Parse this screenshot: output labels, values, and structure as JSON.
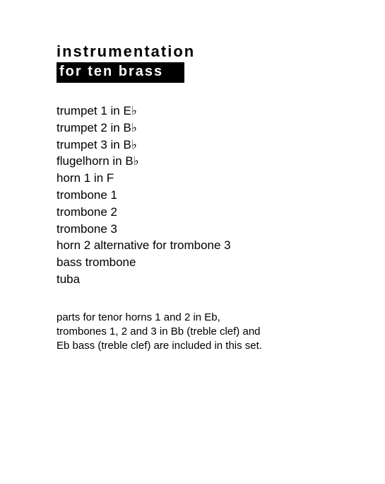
{
  "heading": "instrumentation",
  "subheading": "for ten brass",
  "instruments": [
    "trumpet 1 in E♭",
    "trumpet 2 in B♭",
    "trumpet 3 in B♭",
    "flugelhorn in B♭",
    "horn 1 in F",
    "trombone 1",
    "trombone 2",
    "trombone 3",
    "horn 2 alternative for trombone 3",
    "bass trombone",
    "tuba"
  ],
  "note_lines": [
    "parts for tenor horns 1 and 2 in Eb,",
    "trombones 1, 2 and 3 in Bb (treble clef) and",
    "Eb bass (treble clef) are included in this set."
  ],
  "colors": {
    "background": "#ffffff",
    "text": "#000000",
    "subheading_bg": "#000000",
    "subheading_text": "#ffffff"
  },
  "typography": {
    "heading_fontsize": 22,
    "subheading_fontsize": 20,
    "list_fontsize": 17,
    "note_fontsize": 15,
    "font_family": "Comic Sans MS / handwritten style",
    "heading_letterspacing": 2
  }
}
